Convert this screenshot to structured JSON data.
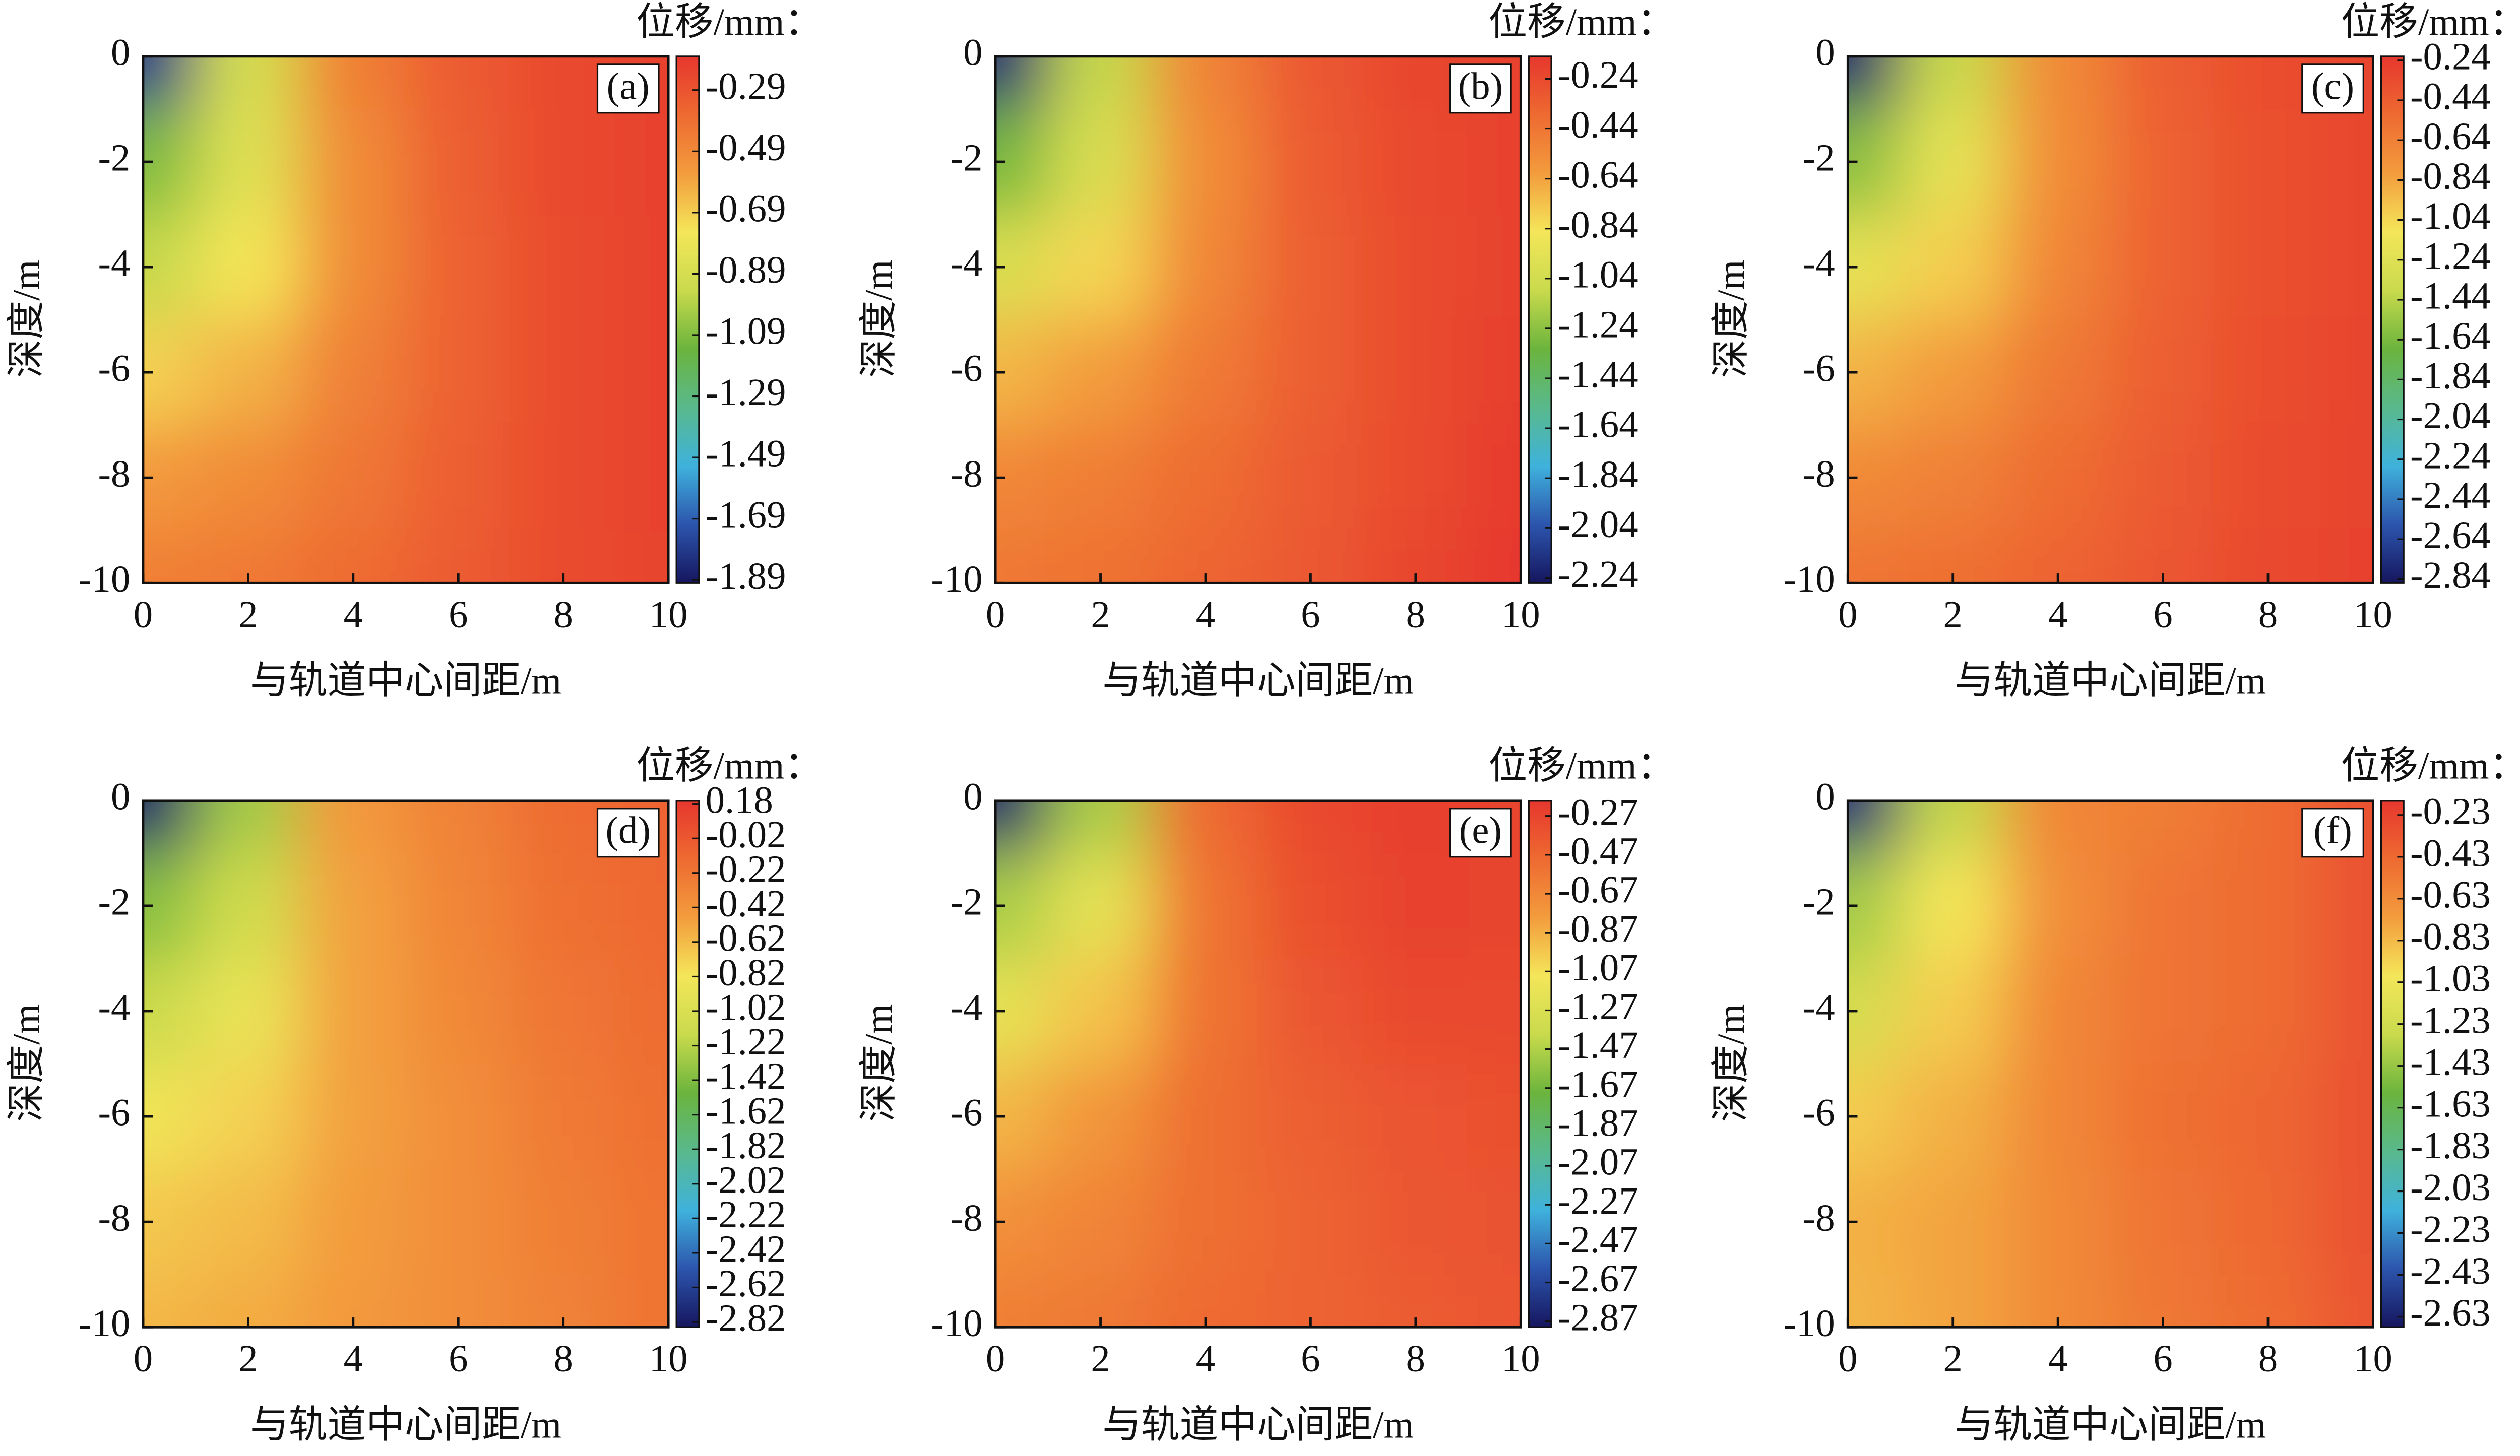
{
  "chart_data": [
    {
      "type": "contour",
      "label": "(a)",
      "colorbar_title": "位移/mm：",
      "x_label": "与轨道中心间距/m",
      "y_label": "深度/m",
      "x": [
        0,
        2,
        4,
        6,
        8,
        10
      ],
      "y": [
        0,
        -2,
        -4,
        -6,
        -8,
        -10
      ],
      "z": [
        [
          -1.8,
          -0.9,
          -0.45,
          -0.32,
          -0.25,
          -0.22
        ],
        [
          -1.1,
          -0.85,
          -0.5,
          -0.33,
          -0.25,
          -0.22
        ],
        [
          -0.95,
          -0.75,
          -0.5,
          -0.34,
          -0.26,
          -0.22
        ],
        [
          -0.7,
          -0.62,
          -0.46,
          -0.34,
          -0.26,
          -0.22
        ],
        [
          -0.55,
          -0.5,
          -0.42,
          -0.33,
          -0.26,
          -0.22
        ],
        [
          -0.45,
          -0.43,
          -0.38,
          -0.32,
          -0.26,
          -0.23
        ]
      ],
      "xlim": [
        0,
        10
      ],
      "ylim": [
        -10,
        0
      ],
      "xticks": [
        0,
        2,
        4,
        6,
        8,
        10
      ],
      "yticks": [
        0,
        -2,
        -4,
        -6,
        -8,
        -10
      ],
      "zlim": [
        -1.9,
        -0.18
      ],
      "zticks": [
        -0.29,
        -0.49,
        -0.69,
        -0.89,
        -1.09,
        -1.29,
        -1.49,
        -1.69,
        -1.89
      ],
      "colormap": [
        "#16165e",
        "#2c55ad",
        "#3fb2dc",
        "#59b98c",
        "#6bb43d",
        "#c9da4c",
        "#f4e65a",
        "#f39c3d",
        "#ee6a31",
        "#e6372e"
      ]
    },
    {
      "type": "contour",
      "label": "(b)",
      "colorbar_title": "位移/mm：",
      "x_label": "与轨道中心间距/m",
      "y_label": "深度/m",
      "x": [
        0,
        2,
        4,
        6,
        8,
        10
      ],
      "y": [
        0,
        -2,
        -4,
        -6,
        -8,
        -10
      ],
      "z": [
        [
          -2.2,
          -1.1,
          -0.5,
          -0.3,
          -0.22,
          -0.2
        ],
        [
          -1.3,
          -1.0,
          -0.55,
          -0.32,
          -0.23,
          -0.2
        ],
        [
          -1.0,
          -0.8,
          -0.52,
          -0.33,
          -0.24,
          -0.2
        ],
        [
          -0.7,
          -0.62,
          -0.46,
          -0.33,
          -0.24,
          -0.19
        ],
        [
          -0.52,
          -0.48,
          -0.4,
          -0.31,
          -0.24,
          -0.17
        ],
        [
          -0.45,
          -0.42,
          -0.36,
          -0.3,
          -0.22,
          -0.15
        ]
      ],
      "xlim": [
        0,
        10
      ],
      "ylim": [
        -10,
        0
      ],
      "xticks": [
        0,
        2,
        4,
        6,
        8,
        10
      ],
      "yticks": [
        0,
        -2,
        -4,
        -6,
        -8,
        -10
      ],
      "zlim": [
        -2.26,
        -0.15
      ],
      "zticks": [
        -0.24,
        -0.44,
        -0.64,
        -0.84,
        -1.04,
        -1.24,
        -1.44,
        -1.64,
        -1.84,
        -2.04,
        -2.24
      ],
      "colormap": [
        "#16165e",
        "#2c55ad",
        "#3fb2dc",
        "#59b98c",
        "#6bb43d",
        "#c9da4c",
        "#f4e65a",
        "#f39c3d",
        "#ee6a31",
        "#e6372e"
      ]
    },
    {
      "type": "contour",
      "label": "(c)",
      "colorbar_title": "位移/mm：",
      "x_label": "与轨道中心间距/m",
      "y_label": "深度/m",
      "x": [
        0,
        2,
        4,
        6,
        8,
        10
      ],
      "y": [
        0,
        -2,
        -4,
        -6,
        -8,
        -10
      ],
      "z": [
        [
          -2.8,
          -1.4,
          -0.7,
          -0.45,
          -0.35,
          -0.3
        ],
        [
          -1.6,
          -1.2,
          -0.72,
          -0.47,
          -0.36,
          -0.31
        ],
        [
          -1.2,
          -1.0,
          -0.68,
          -0.47,
          -0.36,
          -0.31
        ],
        [
          -0.9,
          -0.8,
          -0.6,
          -0.45,
          -0.35,
          -0.3
        ],
        [
          -0.7,
          -0.65,
          -0.53,
          -0.42,
          -0.34,
          -0.3
        ],
        [
          -0.58,
          -0.55,
          -0.48,
          -0.4,
          -0.33,
          -0.29
        ]
      ],
      "xlim": [
        0,
        10
      ],
      "ylim": [
        -10,
        0
      ],
      "xticks": [
        0,
        2,
        4,
        6,
        8,
        10
      ],
      "yticks": [
        0,
        -2,
        -4,
        -6,
        -8,
        -10
      ],
      "zlim": [
        -2.86,
        -0.22
      ],
      "zticks": [
        -0.24,
        -0.44,
        -0.64,
        -0.84,
        -1.04,
        -1.24,
        -1.44,
        -1.64,
        -1.84,
        -2.04,
        -2.24,
        -2.44,
        -2.64,
        -2.84
      ],
      "colormap": [
        "#16165e",
        "#2c55ad",
        "#3fb2dc",
        "#59b98c",
        "#6bb43d",
        "#c9da4c",
        "#f4e65a",
        "#f39c3d",
        "#ee6a31",
        "#e6372e"
      ]
    },
    {
      "type": "contour",
      "label": "(d)",
      "colorbar_title": "位移/mm：",
      "x_label": "与轨道中心间距/m",
      "y_label": "深度/m",
      "x": [
        0,
        2,
        4,
        6,
        8,
        10
      ],
      "y": [
        0,
        -2,
        -4,
        -6,
        -8,
        -10
      ],
      "z": [
        [
          -2.8,
          -1.3,
          -0.45,
          -0.3,
          -0.15,
          -0.1
        ],
        [
          -1.4,
          -1.1,
          -0.5,
          -0.32,
          -0.18,
          -0.12
        ],
        [
          -1.15,
          -0.9,
          -0.5,
          -0.35,
          -0.22,
          -0.15
        ],
        [
          -0.85,
          -0.72,
          -0.5,
          -0.38,
          -0.25,
          -0.18
        ],
        [
          -0.68,
          -0.62,
          -0.48,
          -0.38,
          -0.28,
          -0.2
        ],
        [
          -0.6,
          -0.55,
          -0.46,
          -0.38,
          -0.3,
          -0.2
        ]
      ],
      "xlim": [
        0,
        10
      ],
      "ylim": [
        -10,
        0
      ],
      "xticks": [
        0,
        2,
        4,
        6,
        8,
        10
      ],
      "yticks": [
        0,
        -2,
        -4,
        -6,
        -8,
        -10
      ],
      "zlim": [
        -2.85,
        0.2
      ],
      "zticks": [
        0.18,
        -0.02,
        -0.22,
        -0.42,
        -0.62,
        -0.82,
        -1.02,
        -1.22,
        -1.42,
        -1.62,
        -1.82,
        -2.02,
        -2.22,
        -2.42,
        -2.62,
        -2.82
      ],
      "colormap": [
        "#16165e",
        "#2c55ad",
        "#3fb2dc",
        "#59b98c",
        "#6bb43d",
        "#c9da4c",
        "#f4e65a",
        "#f39c3d",
        "#ee6a31",
        "#e6372e"
      ]
    },
    {
      "type": "contour",
      "label": "(e)",
      "colorbar_title": "位移/mm：",
      "x_label": "与轨道中心间距/m",
      "y_label": "深度/m",
      "x": [
        0,
        2,
        4,
        6,
        8,
        10
      ],
      "y": [
        0,
        -2,
        -4,
        -6,
        -8,
        -10
      ],
      "z": [
        [
          -2.85,
          -1.5,
          -0.5,
          -0.3,
          -0.25,
          -0.27
        ],
        [
          -1.5,
          -1.2,
          -0.55,
          -0.33,
          -0.26,
          -0.27
        ],
        [
          -1.2,
          -0.95,
          -0.55,
          -0.38,
          -0.3,
          -0.3
        ],
        [
          -0.9,
          -0.75,
          -0.52,
          -0.42,
          -0.36,
          -0.33
        ],
        [
          -0.72,
          -0.65,
          -0.52,
          -0.45,
          -0.38,
          -0.35
        ],
        [
          -0.62,
          -0.58,
          -0.5,
          -0.45,
          -0.4,
          -0.37
        ]
      ],
      "xlim": [
        0,
        10
      ],
      "ylim": [
        -10,
        0
      ],
      "xticks": [
        0,
        2,
        4,
        6,
        8,
        10
      ],
      "yticks": [
        0,
        -2,
        -4,
        -6,
        -8,
        -10
      ],
      "zlim": [
        -2.9,
        -0.19
      ],
      "zticks": [
        -0.27,
        -0.47,
        -0.67,
        -0.87,
        -1.07,
        -1.27,
        -1.47,
        -1.67,
        -1.87,
        -2.07,
        -2.27,
        -2.47,
        -2.67,
        -2.87
      ],
      "colormap": [
        "#16165e",
        "#2c55ad",
        "#3fb2dc",
        "#59b98c",
        "#6bb43d",
        "#c9da4c",
        "#f4e65a",
        "#f39c3d",
        "#ee6a31",
        "#e6372e"
      ]
    },
    {
      "type": "contour",
      "label": "(f)",
      "colorbar_title": "位移/mm：",
      "x_label": "与轨道中心间距/m",
      "y_label": "深度/m",
      "x": [
        0,
        2,
        4,
        6,
        8,
        10
      ],
      "y": [
        0,
        -2,
        -4,
        -6,
        -8,
        -10
      ],
      "z": [
        [
          -2.6,
          -1.3,
          -0.6,
          -0.55,
          -0.45,
          -0.3
        ],
        [
          -1.4,
          -1.0,
          -0.65,
          -0.5,
          -0.45,
          -0.3
        ],
        [
          -1.2,
          -0.9,
          -0.6,
          -0.5,
          -0.45,
          -0.3
        ],
        [
          -0.9,
          -0.8,
          -0.6,
          -0.48,
          -0.42,
          -0.3
        ],
        [
          -0.8,
          -0.75,
          -0.62,
          -0.5,
          -0.43,
          -0.3
        ],
        [
          -0.82,
          -0.75,
          -0.62,
          -0.52,
          -0.45,
          -0.32
        ]
      ],
      "xlim": [
        0,
        10
      ],
      "ylim": [
        -10,
        0
      ],
      "xticks": [
        0,
        2,
        4,
        6,
        8,
        10
      ],
      "yticks": [
        0,
        -2,
        -4,
        -6,
        -8,
        -10
      ],
      "zlim": [
        -2.68,
        -0.16
      ],
      "zticks": [
        -0.23,
        -0.43,
        -0.63,
        -0.83,
        -1.03,
        -1.23,
        -1.43,
        -1.63,
        -1.83,
        -2.03,
        -2.23,
        -2.43,
        -2.63
      ],
      "colormap": [
        "#16165e",
        "#2c55ad",
        "#3fb2dc",
        "#59b98c",
        "#6bb43d",
        "#c9da4c",
        "#f4e65a",
        "#f39c3d",
        "#ee6a31",
        "#e6372e"
      ]
    }
  ]
}
